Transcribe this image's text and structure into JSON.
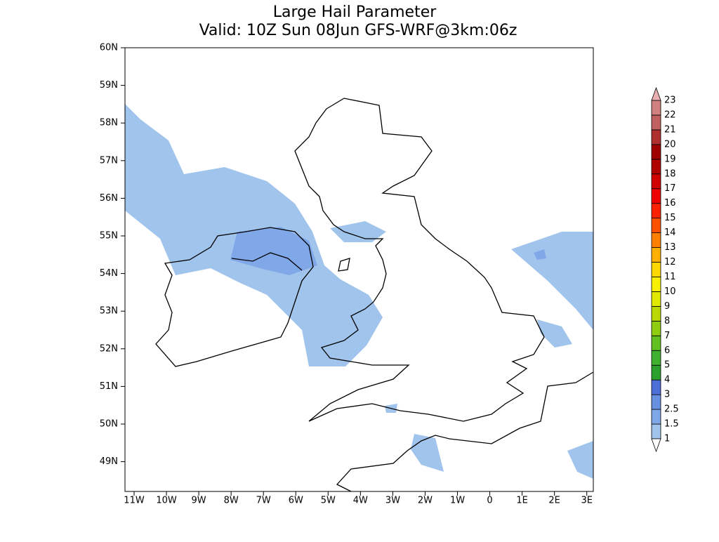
{
  "title": "Large Hail Parameter",
  "subtitle": "Valid: 10Z Sun 08Jun GFS-WRF@3km:06z",
  "lat_labels": [
    "60N",
    "59N",
    "58N",
    "57N",
    "56N",
    "55N",
    "54N",
    "53N",
    "52N",
    "51N",
    "50N",
    "49N"
  ],
  "lon_labels": [
    "11W",
    "10W",
    "9W",
    "8W",
    "7W",
    "6W",
    "5W",
    "4W",
    "3W",
    "2W",
    "1W",
    "0",
    "1E",
    "2E",
    "3E"
  ],
  "colorbar": {
    "levels": [
      1,
      1.5,
      2.5,
      3,
      4,
      5,
      6,
      7,
      8,
      9,
      10,
      11,
      12,
      13,
      14,
      15,
      16,
      17,
      18,
      19,
      20,
      21,
      22,
      23
    ],
    "colors": [
      "#a0c4ec",
      "#80a8e8",
      "#6890e0",
      "#4c70d8",
      "#2ca02c",
      "#40b030",
      "#60c020",
      "#90cc10",
      "#b8d800",
      "#e0e800",
      "#f8f000",
      "#ffd800",
      "#ffb000",
      "#ff8000",
      "#ff5000",
      "#ff2000",
      "#f00000",
      "#d00000",
      "#b00000",
      "#a00000",
      "#b03030",
      "#c06060",
      "#d08080"
    ],
    "over_color": "#e8b0b0",
    "under_color": "#ffffff"
  }
}
